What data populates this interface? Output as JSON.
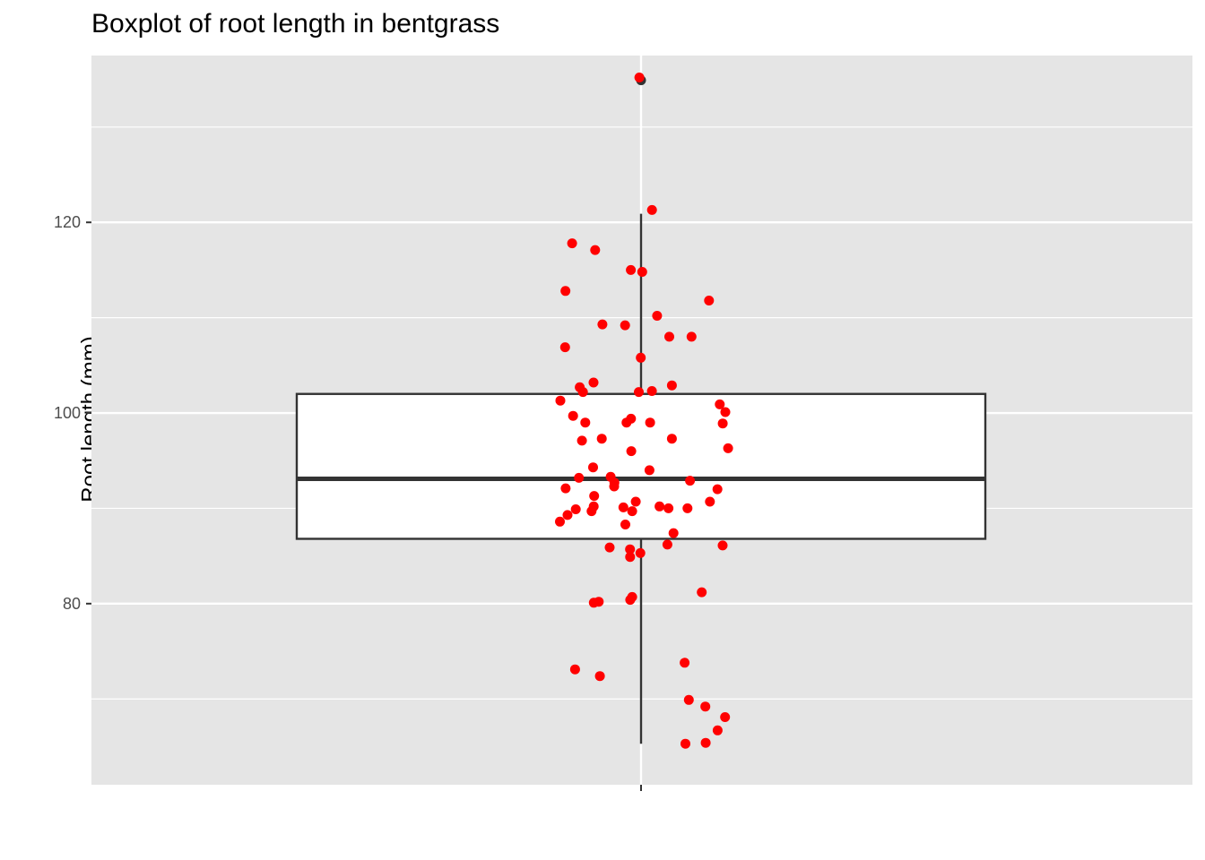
{
  "chart_data": {
    "type": "boxplot",
    "title": "Boxplot of root length in bentgrass",
    "xlabel": "",
    "ylabel": "Root length (mm)",
    "ylim": [
      61,
      137.5
    ],
    "y_ticks": [
      80,
      100,
      120
    ],
    "grid": true,
    "box": {
      "q1": 86.8,
      "median": 93.1,
      "q3": 102.0,
      "whisker_low": 65.3,
      "whisker_high": 120.9,
      "outliers": [
        134.9
      ]
    },
    "jitter_points": [
      135.2,
      121.3,
      117.8,
      117.1,
      115.0,
      114.8,
      112.8,
      111.8,
      110.2,
      109.2,
      109.3,
      108.0,
      108.0,
      106.9,
      105.8,
      103.2,
      102.9,
      102.7,
      102.3,
      102.2,
      102.2,
      101.3,
      100.9,
      100.1,
      99.7,
      99.4,
      98.9,
      99.0,
      99.0,
      99.0,
      97.3,
      97.3,
      97.1,
      96.3,
      96.0,
      94.3,
      94.0,
      93.3,
      93.2,
      92.9,
      92.7,
      92.3,
      92.1,
      92.0,
      91.3,
      90.7,
      90.7,
      90.2,
      90.2,
      90.1,
      90.0,
      90.0,
      89.9,
      89.7,
      89.7,
      89.3,
      88.6,
      88.3,
      87.4,
      86.2,
      86.1,
      85.9,
      85.7,
      85.3,
      84.9,
      81.2,
      80.7,
      80.4,
      80.2,
      80.1,
      73.8,
      73.1,
      72.4,
      69.9,
      69.2,
      68.1,
      66.7,
      65.4,
      65.3
    ],
    "point_color": "#ff0000",
    "panel_color": "#e5e5e5"
  }
}
